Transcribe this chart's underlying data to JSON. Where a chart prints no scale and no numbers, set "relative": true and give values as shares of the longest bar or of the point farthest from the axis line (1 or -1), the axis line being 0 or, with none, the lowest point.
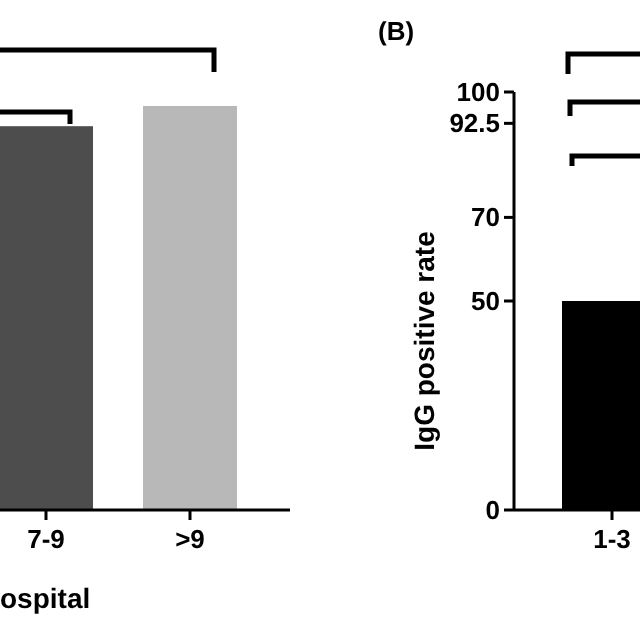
{
  "chart_data": [
    {
      "type": "bar",
      "relative": true,
      "categories": [
        "7-9",
        ">9"
      ],
      "values": [
        0.95,
        1
      ],
      "colors": [
        "#4d4d4d",
        "#b8b8b8"
      ],
      "xlabel": "ospital"
    },
    {
      "type": "bar",
      "title": "(B)",
      "ylabel": "IgG positive rate",
      "categories": [
        "1-3"
      ],
      "values": [
        50
      ],
      "colors": [
        "#000000"
      ],
      "ylim": [
        0,
        100
      ],
      "yticks": [
        0,
        50,
        70,
        92.5,
        100
      ]
    }
  ]
}
